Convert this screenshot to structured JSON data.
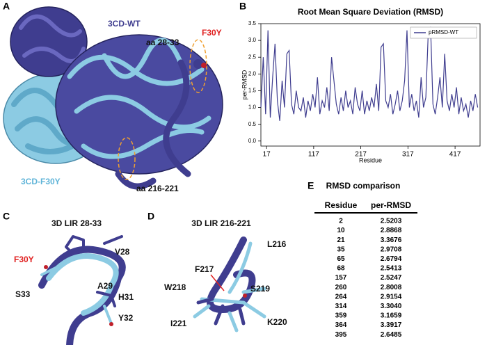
{
  "panels": {
    "a": {
      "letter": "A",
      "labels": [
        "3CD-WT",
        "F30Y",
        "aa 28-33",
        "3CD-F30Y",
        "aa 216-221"
      ]
    },
    "b": {
      "letter": "B"
    },
    "c": {
      "letter": "C",
      "title": "3D LIR 28-33",
      "labels": [
        "F30Y",
        "V28",
        "A29",
        "H31",
        "Y32",
        "S33"
      ]
    },
    "d": {
      "letter": "D",
      "title": "3D LIR 216-221",
      "labels": [
        "L216",
        "F217",
        "W218",
        "S219",
        "K220",
        "I221"
      ]
    },
    "e": {
      "letter": "E"
    }
  },
  "chart_data": {
    "type": "line",
    "title": "Root Mean Square Deviation (RMSD)",
    "x_label": "Residue",
    "y_label": "per-RMSD",
    "x": [
      5,
      10,
      15,
      20,
      25,
      30,
      35,
      40,
      45,
      50,
      55,
      60,
      65,
      70,
      75,
      80,
      85,
      90,
      95,
      100,
      105,
      110,
      115,
      120,
      125,
      130,
      135,
      140,
      145,
      150,
      155,
      160,
      165,
      170,
      175,
      180,
      185,
      190,
      195,
      200,
      205,
      210,
      215,
      220,
      225,
      230,
      235,
      240,
      245,
      250,
      255,
      260,
      265,
      270,
      275,
      280,
      285,
      290,
      295,
      300,
      305,
      310,
      315,
      320,
      325,
      330,
      335,
      340,
      345,
      350,
      355,
      360,
      365,
      370,
      375,
      380,
      385,
      390,
      395,
      400,
      405,
      410,
      415,
      420,
      425,
      430,
      435,
      440,
      445,
      450,
      455,
      460,
      465
    ],
    "series": [
      {
        "name": "pRMSD-WT",
        "color": "#3f3d8f",
        "values": [
          1.0,
          2.5,
          0.8,
          3.3,
          0.7,
          1.9,
          2.9,
          1.2,
          0.6,
          1.8,
          1.0,
          2.6,
          2.7,
          1.1,
          0.8,
          1.5,
          1.0,
          0.9,
          1.3,
          0.7,
          1.2,
          0.9,
          1.4,
          1.0,
          1.9,
          0.8,
          1.2,
          1.0,
          1.6,
          0.9,
          2.5,
          1.8,
          1.1,
          0.8,
          1.3,
          0.9,
          1.5,
          1.0,
          1.2,
          0.8,
          1.6,
          1.1,
          0.9,
          1.5,
          0.8,
          1.2,
          0.9,
          1.3,
          1.0,
          1.7,
          0.9,
          2.8,
          2.9,
          1.2,
          1.0,
          1.4,
          0.8,
          1.1,
          1.5,
          0.9,
          1.2,
          1.8,
          3.3,
          1.0,
          1.4,
          0.9,
          1.2,
          0.7,
          1.9,
          1.0,
          1.3,
          3.2,
          3.4,
          1.1,
          0.8,
          1.3,
          1.9,
          1.0,
          2.6,
          1.2,
          0.9,
          1.4,
          1.0,
          1.6,
          0.8,
          1.3,
          0.9,
          1.1,
          0.7,
          1.2,
          0.9,
          1.4,
          1.0
        ]
      }
    ],
    "xlim": [
      5,
      470
    ],
    "xticks": [
      17,
      117,
      217,
      317,
      417
    ],
    "ylim": [
      -0.15,
      3.5
    ],
    "yticks": [
      {
        "value": 0,
        "label": "0.0"
      },
      0.5,
      {
        "value": 1,
        "label": "1.0"
      },
      1.5,
      {
        "value": 2,
        "label": "2.0"
      },
      2.5,
      {
        "value": 3,
        "label": "3.0"
      },
      3.5
    ],
    "legend": "upper right"
  },
  "table": {
    "title": "RMSD comparison",
    "header": [
      "Residue",
      "per-RMSD"
    ],
    "rows": [
      [
        "2",
        "2.5203"
      ],
      [
        "10",
        "2.8868"
      ],
      [
        "21",
        "3.3676"
      ],
      [
        "35",
        "2.9708"
      ],
      [
        "65",
        "2.6794"
      ],
      [
        "68",
        "2.5413"
      ],
      [
        "157",
        "2.5247"
      ],
      [
        "260",
        "2.8008"
      ],
      [
        "264",
        "2.9154"
      ],
      [
        "314",
        "3.3040"
      ],
      [
        "359",
        "3.1659"
      ],
      [
        "364",
        "3.3917"
      ],
      [
        "395",
        "2.6485"
      ]
    ]
  }
}
